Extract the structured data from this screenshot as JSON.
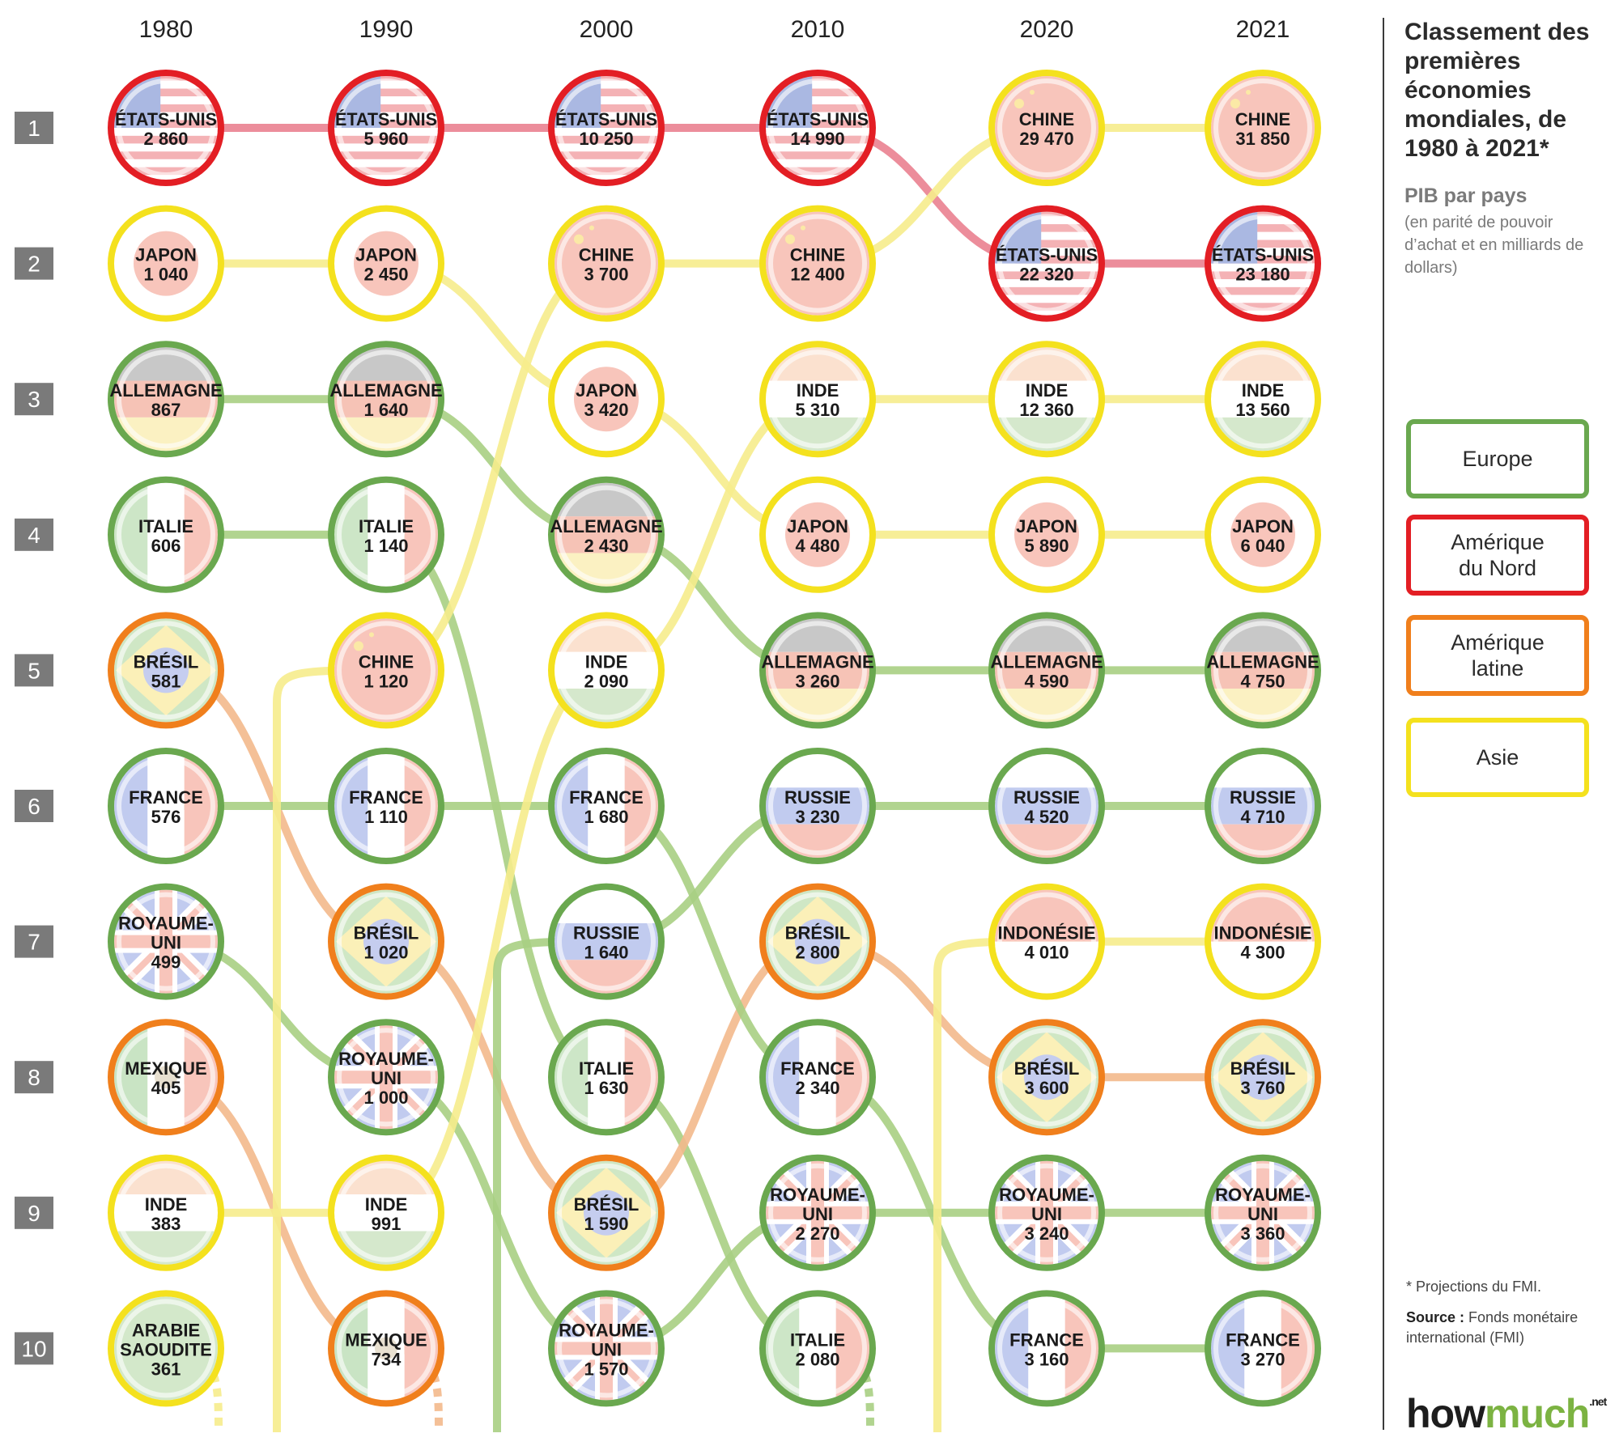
{
  "title": "Classement des premières économies mondiales, de 1980 à 2021*",
  "subtitle": "PIB par pays",
  "unit_note": "(en parité de pouvoir d’achat et en milliards de dollars)",
  "footnote": "* Projections du FMI.",
  "source_label": "Source :",
  "source_text": "Fonds monétaire international (FMI)",
  "logo": {
    "how": "how",
    "much": "much",
    "net": ".net"
  },
  "legend": [
    {
      "key": "europe",
      "label": "Europe",
      "color": "#6aa84f"
    },
    {
      "key": "nam",
      "label": "Amérique du Nord",
      "color": "#e31e24"
    },
    {
      "key": "lat",
      "label": "Amérique latine",
      "color": "#f07f1c"
    },
    {
      "key": "asie",
      "label": "Asie",
      "color": "#f4e11e"
    }
  ],
  "chart_data": {
    "type": "bump",
    "years": [
      "1980",
      "1990",
      "2000",
      "2010",
      "2020",
      "2021"
    ],
    "ranks": [
      "1",
      "2",
      "3",
      "4",
      "5",
      "6",
      "7",
      "8",
      "9",
      "10"
    ],
    "region_colors": {
      "europe": "#6aa84f",
      "nam": "#e31e24",
      "lat": "#f07f1c",
      "asie": "#f4e11e"
    },
    "line_colors": {
      "europe": "#a9cf83",
      "nam": "#ea8190",
      "lat": "#f3b98c",
      "asie": "#f6ec8c"
    },
    "countries": [
      {
        "key": "us",
        "label": "ÉTATS-UNIS",
        "region": "nam",
        "flag": "us",
        "points": [
          [
            "1980",
            1,
            "2 860"
          ],
          [
            "1990",
            1,
            "5 960"
          ],
          [
            "2000",
            1,
            "10 250"
          ],
          [
            "2010",
            1,
            "14 990"
          ],
          [
            "2020",
            2,
            "22 320"
          ],
          [
            "2021",
            2,
            "23 180"
          ]
        ]
      },
      {
        "key": "jp",
        "label": "JAPON",
        "region": "asie",
        "flag": "jp",
        "points": [
          [
            "1980",
            2,
            "1 040"
          ],
          [
            "1990",
            2,
            "2 450"
          ],
          [
            "2000",
            3,
            "3 420"
          ],
          [
            "2010",
            4,
            "4 480"
          ],
          [
            "2020",
            4,
            "5 890"
          ],
          [
            "2021",
            4,
            "6 040"
          ]
        ]
      },
      {
        "key": "de",
        "label": "ALLEMAGNE",
        "region": "europe",
        "flag": "de",
        "points": [
          [
            "1980",
            3,
            "867"
          ],
          [
            "1990",
            3,
            "1 640"
          ],
          [
            "2000",
            4,
            "2 430"
          ],
          [
            "2010",
            5,
            "3 260"
          ],
          [
            "2020",
            5,
            "4 590"
          ],
          [
            "2021",
            5,
            "4 750"
          ]
        ]
      },
      {
        "key": "it",
        "label": "ITALIE",
        "region": "europe",
        "flag": "it",
        "points": [
          [
            "1980",
            4,
            "606"
          ],
          [
            "1990",
            4,
            "1 140"
          ],
          [
            "2000",
            8,
            "1 630"
          ],
          [
            "2010",
            10,
            "2 080"
          ]
        ],
        "exit": true
      },
      {
        "key": "br",
        "label": "BRÉSIL",
        "region": "lat",
        "flag": "br",
        "points": [
          [
            "1980",
            5,
            "581"
          ],
          [
            "1990",
            7,
            "1 020"
          ],
          [
            "2000",
            9,
            "1 590"
          ],
          [
            "2010",
            7,
            "2 800"
          ],
          [
            "2020",
            8,
            "3 600"
          ],
          [
            "2021",
            8,
            "3 760"
          ]
        ]
      },
      {
        "key": "fr",
        "label": "FRANCE",
        "region": "europe",
        "flag": "fr",
        "points": [
          [
            "1980",
            6,
            "576"
          ],
          [
            "1990",
            6,
            "1 110"
          ],
          [
            "2000",
            6,
            "1 680"
          ],
          [
            "2010",
            8,
            "2 340"
          ],
          [
            "2020",
            10,
            "3 160"
          ],
          [
            "2021",
            10,
            "3 270"
          ]
        ]
      },
      {
        "key": "uk",
        "label": "ROYAUME-UNI",
        "label_lines": [
          "ROYAUME-",
          "UNI"
        ],
        "region": "europe",
        "flag": "uk",
        "points": [
          [
            "1980",
            7,
            "499"
          ],
          [
            "1990",
            8,
            "1 000"
          ],
          [
            "2000",
            10,
            "1 570"
          ],
          [
            "2010",
            9,
            "2 270"
          ],
          [
            "2020",
            9,
            "3 240"
          ],
          [
            "2021",
            9,
            "3 360"
          ]
        ]
      },
      {
        "key": "mx",
        "label": "MEXIQUE",
        "region": "lat",
        "flag": "mx",
        "points": [
          [
            "1980",
            8,
            "405"
          ],
          [
            "1990",
            10,
            "734"
          ]
        ],
        "exit": true
      },
      {
        "key": "in",
        "label": "INDE",
        "region": "asie",
        "flag": "in",
        "points": [
          [
            "1980",
            9,
            "383"
          ],
          [
            "1990",
            9,
            "991"
          ],
          [
            "2000",
            5,
            "2 090"
          ],
          [
            "2010",
            3,
            "5 310"
          ],
          [
            "2020",
            3,
            "12 360"
          ],
          [
            "2021",
            3,
            "13 560"
          ]
        ]
      },
      {
        "key": "sa",
        "label": "ARABIE SAOUDITE",
        "label_lines": [
          "ARABIE",
          "SAOUDITE"
        ],
        "region": "asie",
        "flag": "sa",
        "points": [
          [
            "1980",
            10,
            "361"
          ]
        ],
        "exit": true
      },
      {
        "key": "cn",
        "label": "CHINE",
        "region": "asie",
        "flag": "cn",
        "points": [
          [
            "1990",
            5,
            "1 120"
          ],
          [
            "2000",
            2,
            "3 700"
          ],
          [
            "2010",
            2,
            "12 400"
          ],
          [
            "2020",
            1,
            "29 470"
          ],
          [
            "2021",
            1,
            "31 850"
          ]
        ],
        "enter": true
      },
      {
        "key": "ru",
        "label": "RUSSIE",
        "region": "europe",
        "flag": "ru",
        "points": [
          [
            "2000",
            7,
            "1 640"
          ],
          [
            "2010",
            6,
            "3 230"
          ],
          [
            "2020",
            6,
            "4 520"
          ],
          [
            "2021",
            6,
            "4 710"
          ]
        ],
        "enter": true
      },
      {
        "key": "id",
        "label": "INDONÉSIE",
        "region": "asie",
        "flag": "id",
        "points": [
          [
            "2020",
            7,
            "4 010"
          ],
          [
            "2021",
            7,
            "4 300"
          ]
        ],
        "enter": true
      }
    ]
  }
}
